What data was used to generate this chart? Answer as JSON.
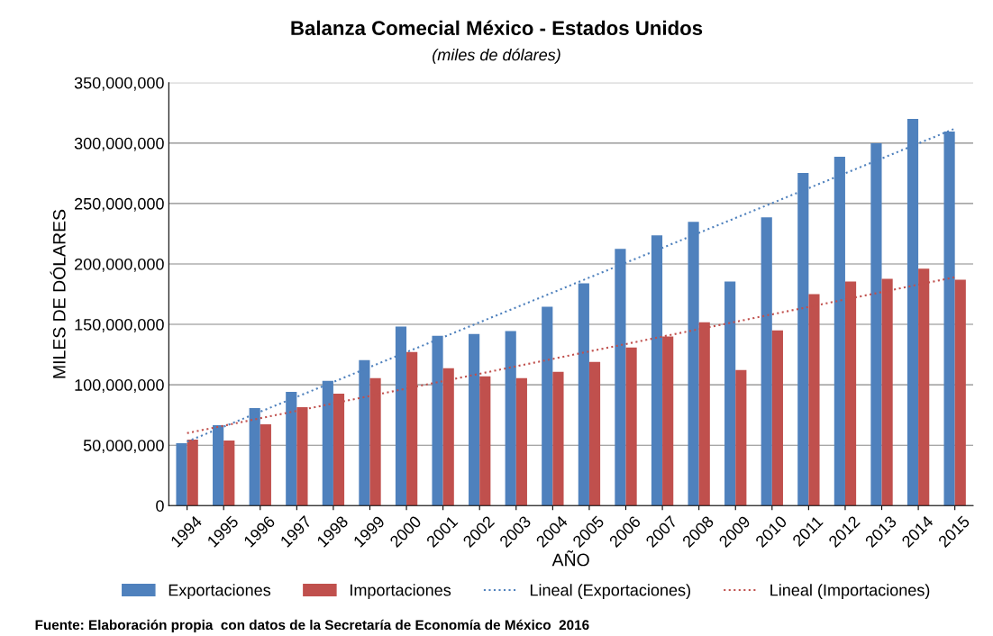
{
  "chart_data": {
    "type": "bar",
    "title": "Balanza Comecial México - Estados Unidos",
    "subtitle": "(miles de dólares)",
    "xlabel": "AÑO",
    "ylabel": "MILES DE DÓLARES",
    "categories": [
      "1994",
      "1995",
      "1996",
      "1997",
      "1998",
      "1999",
      "2000",
      "2001",
      "2002",
      "2003",
      "2004",
      "2005",
      "2006",
      "2007",
      "2008",
      "2009",
      "2010",
      "2011",
      "2012",
      "2013",
      "2014",
      "2015"
    ],
    "series": [
      {
        "name": "Exportaciones",
        "color": "#4f81bd",
        "values": [
          51600000,
          66600000,
          80800000,
          94200000,
          103200000,
          120400000,
          148100000,
          140600000,
          142100000,
          144400000,
          164500000,
          184000000,
          212400000,
          223600000,
          234900000,
          185500000,
          238600000,
          275200000,
          288700000,
          299900000,
          320100000,
          309600000
        ]
      },
      {
        "name": "Importaciones",
        "color": "#c0504d",
        "values": [
          54600000,
          53900000,
          67300000,
          81500000,
          92700000,
          105500000,
          127100000,
          113700000,
          107000000,
          105500000,
          110700000,
          118900000,
          130900000,
          139900000,
          151800000,
          112200000,
          145100000,
          175000000,
          185500000,
          187700000,
          196000000,
          187000000
        ]
      },
      {
        "name": "Lineal (Exportaciones)",
        "type": "line",
        "line_style": "dotted",
        "color": "#4f81bd",
        "values": [
          53000000,
          65300000,
          77700000,
          90000000,
          102300000,
          114700000,
          127000000,
          139300000,
          151700000,
          164000000,
          176300000,
          188700000,
          201000000,
          213300000,
          225700000,
          238000000,
          250300000,
          262700000,
          275000000,
          287300000,
          299700000,
          312000000
        ]
      },
      {
        "name": "Lineal (Importaciones)",
        "type": "line",
        "line_style": "dotted",
        "color": "#c0504d",
        "values": [
          60000000,
          66100000,
          72300000,
          78400000,
          84600000,
          90700000,
          96900000,
          103000000,
          109100000,
          115300000,
          121400000,
          127600000,
          133700000,
          139900000,
          146000000,
          152100000,
          158300000,
          164400000,
          170600000,
          176700000,
          182900000,
          189000000
        ]
      }
    ],
    "ylim": [
      0,
      350000000
    ],
    "yticks": [
      {
        "value": 0,
        "label": "0"
      },
      {
        "value": 50000000,
        "label": "50,000,000"
      },
      {
        "value": 100000000,
        "label": "100,000,000"
      },
      {
        "value": 150000000,
        "label": "150,000,000"
      },
      {
        "value": 200000000,
        "label": "200,000,000"
      },
      {
        "value": 250000000,
        "label": "250,000,000"
      },
      {
        "value": 300000000,
        "label": "300,000,000"
      },
      {
        "value": 350000000,
        "label": "350,000,000"
      }
    ],
    "grid": "y",
    "legend": "bottom",
    "annotations": [
      "Fuente: Elaboración propia  con datos de la Secretaría de Economía de México  2016"
    ]
  }
}
